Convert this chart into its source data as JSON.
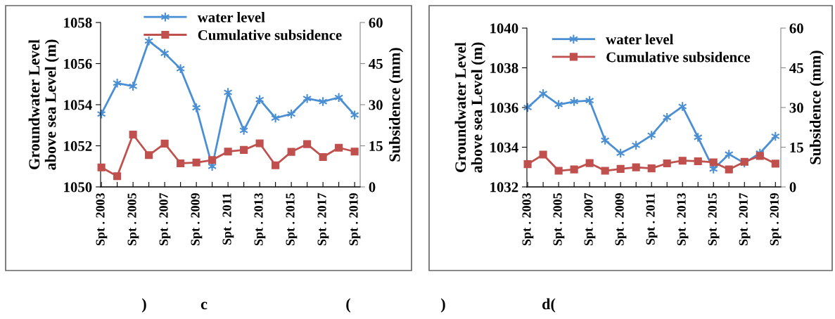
{
  "chart_data": [
    {
      "type": "line",
      "ylabel": "Groundwater Level\nabove sea Level (m)",
      "y2label": "Subsidence (mm)",
      "categories": [
        "Spt . 2003",
        null,
        "Spt . 2005",
        null,
        "Spt . 2007",
        null,
        "Spt . 2009",
        null,
        "Spt . 2011",
        null,
        "Spt . 2013",
        null,
        "Spt . 2015",
        null,
        "Spt . 2017",
        null,
        "Spt . 2019"
      ],
      "series": [
        {
          "name": "water level",
          "color": "#4a8fd4",
          "marker": "cross",
          "values": [
            1053.55,
            1055.05,
            1054.9,
            1057.1,
            1056.5,
            1055.75,
            1053.85,
            1051.0,
            1054.6,
            1052.75,
            1054.25,
            1053.35,
            1053.55,
            1054.3,
            1054.15,
            1054.35,
            1053.5
          ]
        },
        {
          "name": "Cumulative subsidence",
          "color": "#c0504d",
          "marker": "square",
          "axis": "y2",
          "values": [
            7.1,
            3.9,
            19.1,
            11.6,
            15.8,
            8.6,
            8.9,
            9.8,
            12.9,
            13.5,
            15.9,
            7.9,
            12.8,
            15.6,
            10.9,
            14.3,
            12.9
          ]
        }
      ],
      "ylim": [
        1050,
        1058
      ],
      "yticks": [
        1050,
        1052,
        1054,
        1056,
        1058
      ],
      "y2lim": [
        0,
        60
      ],
      "y2ticks": [
        0,
        15,
        30,
        45,
        60
      ],
      "grid": false,
      "legend": "top",
      "annotations": [
        ")",
        "c",
        "("
      ]
    },
    {
      "type": "line",
      "ylabel": "Groundwater Level\nabove sea Level (m)",
      "y2label": "Subsidence (mm)",
      "categories": [
        "Spt . 2003",
        null,
        "Spt . 2005",
        null,
        "Spt . 2007",
        null,
        "Spt . 2009",
        null,
        "Spt . 2011",
        null,
        "Spt . 2013",
        null,
        "Spt . 2015",
        null,
        "Spt . 2017",
        null,
        "Spt . 2019"
      ],
      "series": [
        {
          "name": "water level",
          "color": "#4a8fd4",
          "marker": "cross",
          "values": [
            1036.0,
            1036.7,
            1036.15,
            1036.3,
            1036.35,
            1034.35,
            1033.7,
            1034.1,
            1034.6,
            1035.5,
            1036.05,
            1034.5,
            1032.9,
            1033.65,
            1033.2,
            1033.7,
            1034.55
          ]
        },
        {
          "name": "Cumulative subsidence",
          "color": "#c0504d",
          "marker": "square",
          "axis": "y2",
          "values": [
            8.6,
            12.2,
            6.1,
            6.6,
            9.0,
            6.1,
            6.8,
            7.4,
            7.0,
            8.9,
            9.9,
            9.7,
            9.3,
            6.6,
            9.5,
            11.7,
            8.8
          ]
        }
      ],
      "ylim": [
        1032,
        1040
      ],
      "yticks": [
        1032,
        1034,
        1036,
        1038,
        1040
      ],
      "y2lim": [
        0,
        60
      ],
      "y2ticks": [
        0,
        15,
        30,
        45,
        60
      ],
      "grid": false,
      "legend": "top left",
      "annotations": [
        ")",
        "d("
      ]
    }
  ]
}
